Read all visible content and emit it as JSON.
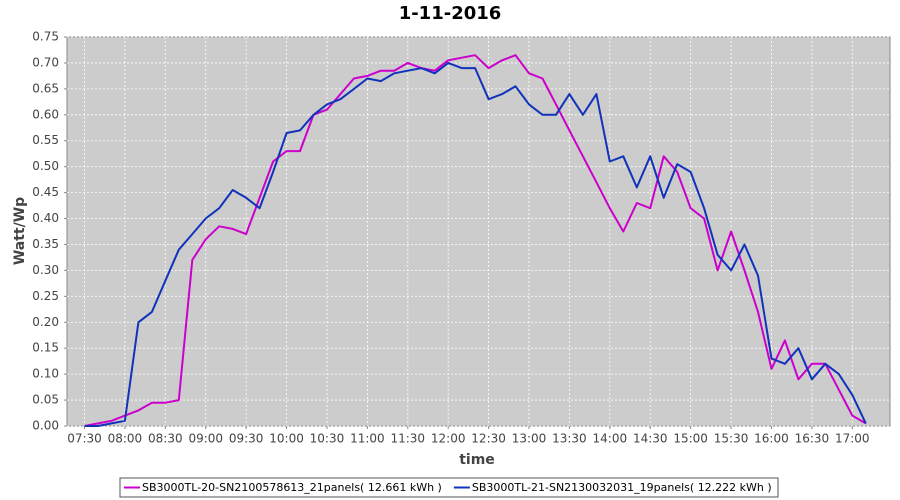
{
  "chart_data": {
    "type": "line",
    "title": "1-11-2016",
    "x_label": "time",
    "y_label": "Watt/Wp",
    "x": [
      "07:30",
      "07:40",
      "07:50",
      "08:00",
      "08:10",
      "08:20",
      "08:30",
      "08:40",
      "08:50",
      "09:00",
      "09:10",
      "09:20",
      "09:30",
      "09:40",
      "09:50",
      "10:00",
      "10:10",
      "10:20",
      "10:30",
      "10:40",
      "10:50",
      "11:00",
      "11:10",
      "11:20",
      "11:30",
      "11:40",
      "11:50",
      "12:00",
      "12:10",
      "12:20",
      "12:30",
      "12:40",
      "12:50",
      "13:00",
      "13:10",
      "13:20",
      "13:30",
      "13:40",
      "13:50",
      "14:00",
      "14:10",
      "14:20",
      "14:30",
      "14:40",
      "14:50",
      "15:00",
      "15:10",
      "15:20",
      "15:30",
      "15:40",
      "15:50",
      "16:00",
      "16:10",
      "16:20",
      "16:30",
      "16:40",
      "16:50",
      "17:00",
      "17:10"
    ],
    "series": [
      {
        "name": "SB3000TL-20-SN2100578613_21panels( 12.661 kWh )",
        "color": "#cc00cc",
        "values": [
          0.0,
          0.005,
          0.01,
          0.02,
          0.03,
          0.045,
          0.045,
          0.05,
          0.32,
          0.36,
          0.385,
          0.38,
          0.37,
          0.44,
          0.51,
          0.53,
          0.53,
          0.6,
          0.61,
          0.64,
          0.67,
          0.675,
          0.685,
          0.685,
          0.7,
          0.69,
          0.685,
          0.705,
          0.71,
          0.715,
          0.69,
          0.705,
          0.715,
          0.68,
          0.67,
          0.62,
          0.57,
          0.52,
          0.47,
          0.42,
          0.375,
          0.43,
          0.42,
          0.52,
          0.49,
          0.42,
          0.4,
          0.3,
          0.375,
          0.3,
          0.22,
          0.11,
          0.165,
          0.09,
          0.12,
          0.12,
          0.07,
          0.02,
          0.005
        ]
      },
      {
        "name": "SB3000TL-21-SN2130032031_19panels( 12.222 kWh )",
        "color": "#1133bb",
        "values": [
          0.0,
          0.0,
          0.005,
          0.01,
          0.2,
          0.22,
          0.28,
          0.34,
          0.37,
          0.4,
          0.42,
          0.455,
          0.44,
          0.42,
          0.49,
          0.565,
          0.57,
          0.6,
          0.62,
          0.63,
          0.65,
          0.67,
          0.665,
          0.68,
          0.685,
          0.69,
          0.68,
          0.7,
          0.69,
          0.69,
          0.63,
          0.64,
          0.655,
          0.62,
          0.6,
          0.6,
          0.64,
          0.6,
          0.64,
          0.51,
          0.52,
          0.46,
          0.52,
          0.44,
          0.505,
          0.49,
          0.42,
          0.33,
          0.3,
          0.35,
          0.29,
          0.13,
          0.12,
          0.15,
          0.09,
          0.12,
          0.1,
          0.06,
          0.005
        ]
      }
    ],
    "xlim": [
      "07:17",
      "17:28"
    ],
    "xticks": [
      "07:30",
      "08:00",
      "08:30",
      "09:00",
      "09:30",
      "10:00",
      "10:30",
      "11:00",
      "11:30",
      "12:00",
      "12:30",
      "13:00",
      "13:30",
      "14:00",
      "14:30",
      "15:00",
      "15:30",
      "16:00",
      "16:30",
      "17:00"
    ],
    "ylim": [
      0,
      0.75
    ],
    "yticks": [
      {
        "value": 0,
        "label": "0.00"
      },
      {
        "value": 0.05,
        "label": "0.05"
      },
      {
        "value": 0.1,
        "label": "0.10"
      },
      {
        "value": 0.15,
        "label": "0.15"
      },
      {
        "value": 0.2,
        "label": "0.20"
      },
      {
        "value": 0.25,
        "label": "0.25"
      },
      {
        "value": 0.3,
        "label": "0.30"
      },
      {
        "value": 0.35,
        "label": "0.35"
      },
      {
        "value": 0.4,
        "label": "0.40"
      },
      {
        "value": 0.45,
        "label": "0.45"
      },
      {
        "value": 0.5,
        "label": "0.50"
      },
      {
        "value": 0.55,
        "label": "0.55"
      },
      {
        "value": 0.6,
        "label": "0.60"
      },
      {
        "value": 0.65,
        "label": "0.65"
      },
      {
        "value": 0.7,
        "label": "0.70"
      },
      {
        "value": 0.75,
        "label": "0.75"
      }
    ],
    "grid": true
  }
}
